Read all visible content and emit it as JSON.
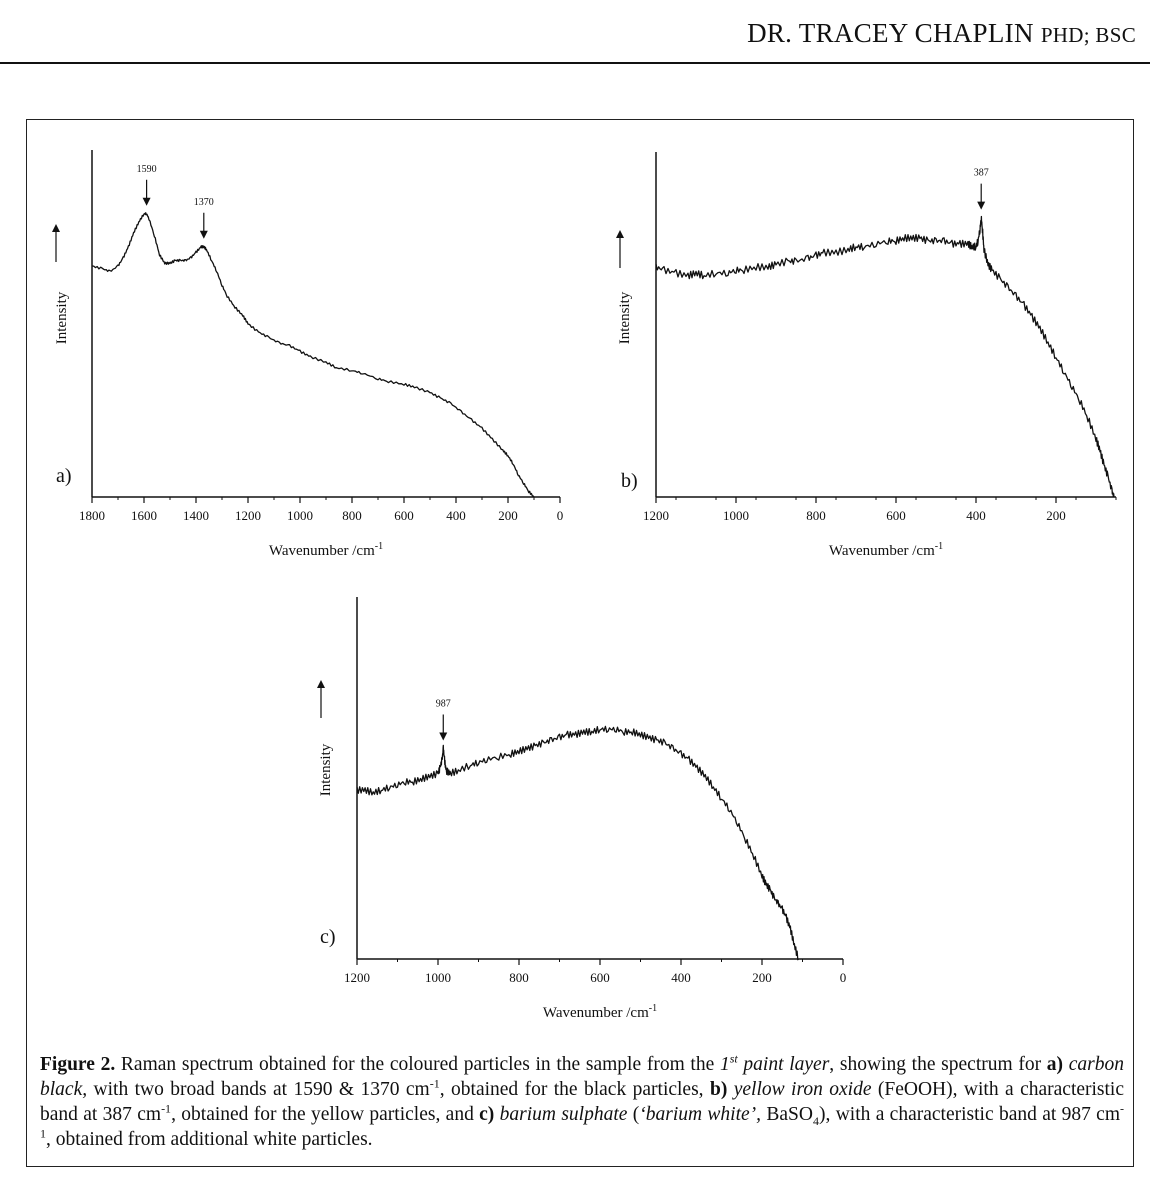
{
  "header": {
    "name": "DR. TRACEY CHAPLIN",
    "credentials": "PHD; BSC"
  },
  "caption": {
    "fig_label": "Figure 2.",
    "t1": " Raman spectrum obtained for the coloured particles in the sample from the ",
    "t2_num": "1",
    "t2_sup": "st",
    "t2_rest": " paint layer",
    "t3": ", showing the spectrum for ",
    "a_label": "a)",
    "a_name": " carbon black,",
    "t4": " with two broad bands at 1590 & 1370 cm",
    "sup_m1": "-1",
    "t5": ", obtained for the black particles, ",
    "b_label": "b)",
    "b_name": " yellow iron oxide",
    "t6": " (FeOOH), with a characteristic band at 387 cm",
    "t7": ", obtained for the yellow particles, and ",
    "c_label": "c)",
    "c_name": " barium sulphate",
    "t8": " (",
    "c_alt": "‘barium white’,",
    "t9": " BaSO",
    "sub4": "4",
    "t10": "), with a characteristic band at 987 cm",
    "t11": ", obtained from additional white particles."
  },
  "chart_data": [
    {
      "type": "line",
      "panel_label": "a)",
      "xlabel": "Wavenumber /cm",
      "xlabel_sup": "-1",
      "ylabel": "Intensity",
      "xlim": [
        1800,
        0
      ],
      "ylim": [
        0,
        1
      ],
      "x_ticks": [
        1800,
        1600,
        1400,
        1200,
        1000,
        800,
        600,
        400,
        200,
        0
      ],
      "annotations": [
        {
          "x": 1590,
          "text": "1590"
        },
        {
          "x": 1370,
          "text": "1370"
        }
      ],
      "series": [
        {
          "color": "#111111",
          "x": [
            1800,
            1760,
            1730,
            1700,
            1680,
            1660,
            1640,
            1620,
            1600,
            1590,
            1580,
            1560,
            1540,
            1520,
            1500,
            1480,
            1460,
            1440,
            1420,
            1400,
            1380,
            1370,
            1360,
            1340,
            1320,
            1300,
            1280,
            1250,
            1220,
            1200,
            1160,
            1120,
            1080,
            1040,
            1000,
            960,
            900,
            860,
            800,
            760,
            700,
            660,
            600,
            560,
            500,
            460,
            420,
            380,
            340,
            300,
            260,
            220,
            200,
            180,
            160,
            140,
            120,
            100
          ],
          "y": [
            0.84,
            0.83,
            0.82,
            0.84,
            0.87,
            0.91,
            0.96,
            1.0,
            1.03,
            1.03,
            1.01,
            0.95,
            0.88,
            0.85,
            0.85,
            0.86,
            0.86,
            0.86,
            0.87,
            0.89,
            0.91,
            0.91,
            0.9,
            0.86,
            0.82,
            0.77,
            0.73,
            0.69,
            0.66,
            0.63,
            0.6,
            0.58,
            0.56,
            0.55,
            0.53,
            0.51,
            0.49,
            0.47,
            0.46,
            0.45,
            0.43,
            0.42,
            0.41,
            0.4,
            0.38,
            0.36,
            0.34,
            0.31,
            0.28,
            0.25,
            0.21,
            0.17,
            0.15,
            0.12,
            0.08,
            0.05,
            0.02,
            0.0
          ]
        }
      ]
    },
    {
      "type": "line",
      "panel_label": "b)",
      "xlabel": "Wavenumber /cm",
      "xlabel_sup": "-1",
      "ylabel": "Intensity",
      "xlim": [
        1200,
        50
      ],
      "ylim": [
        0,
        1
      ],
      "x_ticks": [
        1200,
        1000,
        800,
        600,
        400,
        200
      ],
      "annotations": [
        {
          "x": 387,
          "text": "387"
        }
      ],
      "series": [
        {
          "color": "#111111",
          "x": [
            1200,
            1180,
            1150,
            1120,
            1100,
            1080,
            1050,
            1020,
            1000,
            980,
            950,
            920,
            900,
            870,
            850,
            820,
            800,
            780,
            750,
            720,
            700,
            680,
            650,
            620,
            600,
            580,
            560,
            540,
            520,
            500,
            480,
            460,
            440,
            420,
            410,
            400,
            395,
            390,
            387,
            384,
            380,
            370,
            360,
            340,
            320,
            300,
            280,
            260,
            240,
            220,
            200,
            180,
            160,
            140,
            120,
            100,
            90,
            80,
            70,
            60,
            55
          ],
          "y": [
            0.79,
            0.78,
            0.77,
            0.76,
            0.77,
            0.76,
            0.77,
            0.77,
            0.78,
            0.78,
            0.79,
            0.79,
            0.8,
            0.81,
            0.81,
            0.82,
            0.83,
            0.84,
            0.84,
            0.85,
            0.86,
            0.86,
            0.87,
            0.88,
            0.88,
            0.89,
            0.89,
            0.89,
            0.88,
            0.88,
            0.88,
            0.87,
            0.87,
            0.87,
            0.86,
            0.86,
            0.88,
            0.92,
            0.96,
            0.92,
            0.85,
            0.8,
            0.78,
            0.75,
            0.72,
            0.69,
            0.66,
            0.62,
            0.58,
            0.53,
            0.48,
            0.43,
            0.38,
            0.33,
            0.27,
            0.2,
            0.16,
            0.11,
            0.07,
            0.02,
            0.0
          ]
        }
      ]
    },
    {
      "type": "line",
      "panel_label": "c)",
      "xlabel": "Wavenumber /cm",
      "xlabel_sup": "-1",
      "ylabel": "Intensity",
      "xlim": [
        1200,
        0
      ],
      "ylim": [
        0,
        1
      ],
      "x_ticks": [
        1200,
        1000,
        800,
        600,
        400,
        200,
        0
      ],
      "annotations": [
        {
          "x": 987,
          "text": "987"
        }
      ],
      "series": [
        {
          "color": "#111111",
          "x": [
            1200,
            1180,
            1160,
            1140,
            1120,
            1100,
            1080,
            1060,
            1040,
            1020,
            1000,
            995,
            990,
            987,
            984,
            980,
            970,
            950,
            920,
            900,
            880,
            850,
            820,
            800,
            780,
            760,
            740,
            720,
            700,
            680,
            660,
            640,
            620,
            600,
            580,
            560,
            540,
            520,
            500,
            480,
            460,
            440,
            420,
            400,
            380,
            360,
            340,
            320,
            300,
            280,
            260,
            240,
            220,
            200,
            190,
            180,
            170,
            160,
            150,
            140,
            130,
            120,
            110
          ],
          "y": [
            0.61,
            0.61,
            0.6,
            0.61,
            0.62,
            0.63,
            0.64,
            0.64,
            0.65,
            0.66,
            0.67,
            0.69,
            0.72,
            0.76,
            0.72,
            0.68,
            0.67,
            0.68,
            0.7,
            0.71,
            0.72,
            0.73,
            0.74,
            0.75,
            0.76,
            0.77,
            0.78,
            0.79,
            0.8,
            0.81,
            0.81,
            0.82,
            0.82,
            0.83,
            0.83,
            0.83,
            0.82,
            0.82,
            0.81,
            0.8,
            0.79,
            0.78,
            0.76,
            0.74,
            0.72,
            0.69,
            0.66,
            0.62,
            0.58,
            0.54,
            0.49,
            0.43,
            0.37,
            0.3,
            0.27,
            0.25,
            0.22,
            0.2,
            0.18,
            0.15,
            0.11,
            0.05,
            0.0
          ]
        }
      ]
    }
  ]
}
